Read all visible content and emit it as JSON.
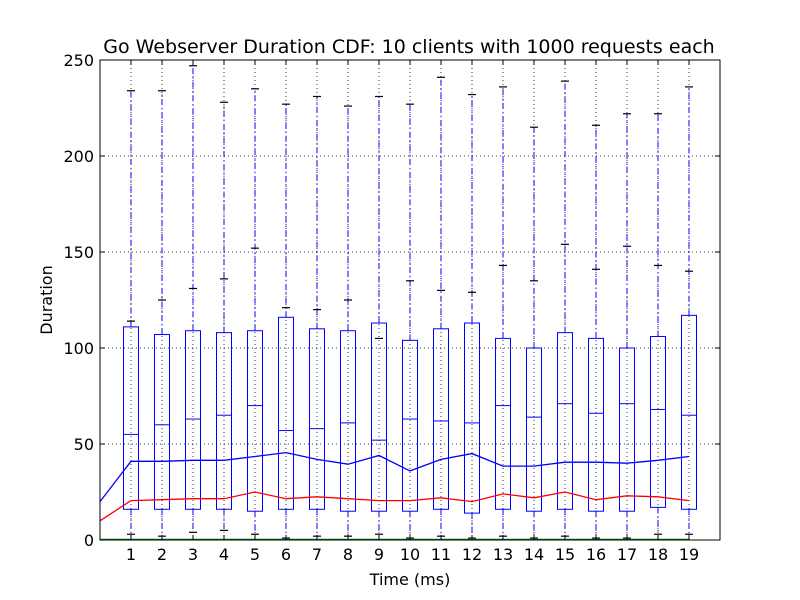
{
  "chart_data": {
    "type": "box",
    "title": "Go Webserver Duration CDF: 10 clients with 1000 requests each",
    "xlabel": "Time (ms)",
    "ylabel": "Duration",
    "ylim": [
      0,
      250
    ],
    "xlim": [
      0,
      20
    ],
    "yticks": [
      0,
      50,
      100,
      150,
      200,
      250
    ],
    "xticks": [
      1,
      2,
      3,
      4,
      5,
      6,
      7,
      8,
      9,
      10,
      11,
      12,
      13,
      14,
      15,
      16,
      17,
      18,
      19
    ],
    "grid": true,
    "boxes": [
      {
        "x": 1,
        "whisker_low": 3,
        "q1": 16,
        "median": 55,
        "q3": 111,
        "whisker_high": 234,
        "outliers": [
          114
        ]
      },
      {
        "x": 2,
        "whisker_low": 2,
        "q1": 16,
        "median": 60,
        "q3": 107,
        "whisker_high": 234,
        "outliers": [
          125
        ]
      },
      {
        "x": 3,
        "whisker_low": 4,
        "q1": 16,
        "median": 63,
        "q3": 109,
        "whisker_high": 247,
        "outliers": [
          131
        ]
      },
      {
        "x": 4,
        "whisker_low": 5,
        "q1": 16,
        "median": 65,
        "q3": 108,
        "whisker_high": 228,
        "outliers": [
          136
        ]
      },
      {
        "x": 5,
        "whisker_low": 3,
        "q1": 15,
        "median": 70,
        "q3": 109,
        "whisker_high": 235,
        "outliers": [
          152
        ]
      },
      {
        "x": 6,
        "whisker_low": 1,
        "q1": 16,
        "median": 57,
        "q3": 116,
        "whisker_high": 227,
        "outliers": [
          121
        ]
      },
      {
        "x": 7,
        "whisker_low": 2,
        "q1": 16,
        "median": 58,
        "q3": 110,
        "whisker_high": 231,
        "outliers": [
          120
        ]
      },
      {
        "x": 8,
        "whisker_low": 2,
        "q1": 15,
        "median": 61,
        "q3": 109,
        "whisker_high": 226,
        "outliers": [
          125
        ]
      },
      {
        "x": 9,
        "whisker_low": 3,
        "q1": 15,
        "median": 52,
        "q3": 113,
        "whisker_high": 231,
        "outliers": [
          105
        ]
      },
      {
        "x": 10,
        "whisker_low": 1,
        "q1": 15,
        "median": 63,
        "q3": 104,
        "whisker_high": 227,
        "outliers": [
          135
        ]
      },
      {
        "x": 11,
        "whisker_low": 2,
        "q1": 16,
        "median": 62,
        "q3": 110,
        "whisker_high": 241,
        "outliers": [
          130
        ]
      },
      {
        "x": 12,
        "whisker_low": 1,
        "q1": 14,
        "median": 61,
        "q3": 113,
        "whisker_high": 232,
        "outliers": [
          129
        ]
      },
      {
        "x": 13,
        "whisker_low": 2,
        "q1": 16,
        "median": 70,
        "q3": 105,
        "whisker_high": 236,
        "outliers": [
          143
        ]
      },
      {
        "x": 14,
        "whisker_low": 1,
        "q1": 15,
        "median": 64,
        "q3": 100,
        "whisker_high": 215,
        "outliers": [
          135
        ]
      },
      {
        "x": 15,
        "whisker_low": 2,
        "q1": 16,
        "median": 71,
        "q3": 108,
        "whisker_high": 239,
        "outliers": [
          154
        ]
      },
      {
        "x": 16,
        "whisker_low": 1,
        "q1": 15,
        "median": 66,
        "q3": 105,
        "whisker_high": 216,
        "outliers": [
          141
        ]
      },
      {
        "x": 17,
        "whisker_low": 1,
        "q1": 15,
        "median": 71,
        "q3": 100,
        "whisker_high": 222,
        "outliers": [
          153
        ]
      },
      {
        "x": 18,
        "whisker_low": 3,
        "q1": 17,
        "median": 68,
        "q3": 106,
        "whisker_high": 222,
        "outliers": [
          143
        ]
      },
      {
        "x": 19,
        "whisker_low": 3,
        "q1": 16,
        "median": 65,
        "q3": 117,
        "whisker_high": 236,
        "outliers": [
          140
        ]
      }
    ],
    "series": [
      {
        "color": "#0000ff",
        "x": [
          0,
          1,
          2,
          3,
          4,
          5,
          6,
          7,
          8,
          9,
          10,
          11,
          12,
          13,
          14,
          15,
          16,
          17,
          18,
          19
        ],
        "values": [
          20,
          41,
          41,
          41.5,
          41.5,
          43.5,
          45.5,
          42,
          39.5,
          44,
          36,
          42,
          45,
          38.5,
          38.5,
          40.5,
          40.5,
          40,
          41.5,
          43.5
        ]
      },
      {
        "color": "#ff0000",
        "x": [
          0,
          1,
          2,
          3,
          4,
          5,
          6,
          7,
          8,
          9,
          10,
          11,
          12,
          13,
          14,
          15,
          16,
          17,
          18,
          19
        ],
        "values": [
          10,
          20.5,
          21,
          21.5,
          21.5,
          25,
          21.5,
          22.5,
          21.5,
          20.5,
          20.5,
          22,
          20,
          24,
          22,
          25,
          21,
          23,
          22.5,
          20.5
        ]
      },
      {
        "color": "#008000",
        "x": [
          0,
          1,
          2,
          3,
          4,
          5,
          6,
          7,
          8,
          9,
          10,
          11,
          12,
          13,
          14,
          15,
          16,
          17,
          18,
          19
        ],
        "values": [
          0.3,
          0.3,
          0.3,
          0.3,
          0.3,
          0.3,
          0.3,
          0.3,
          0.3,
          0.3,
          0.3,
          0.3,
          0.3,
          0.3,
          0.3,
          0.3,
          0.3,
          0.3,
          0.3,
          0.3
        ]
      }
    ],
    "colors": {
      "box": "#0000ff",
      "whisker": "#0000ff",
      "cap": "#000000",
      "outlier": "#000000",
      "grid": "#000000"
    }
  }
}
